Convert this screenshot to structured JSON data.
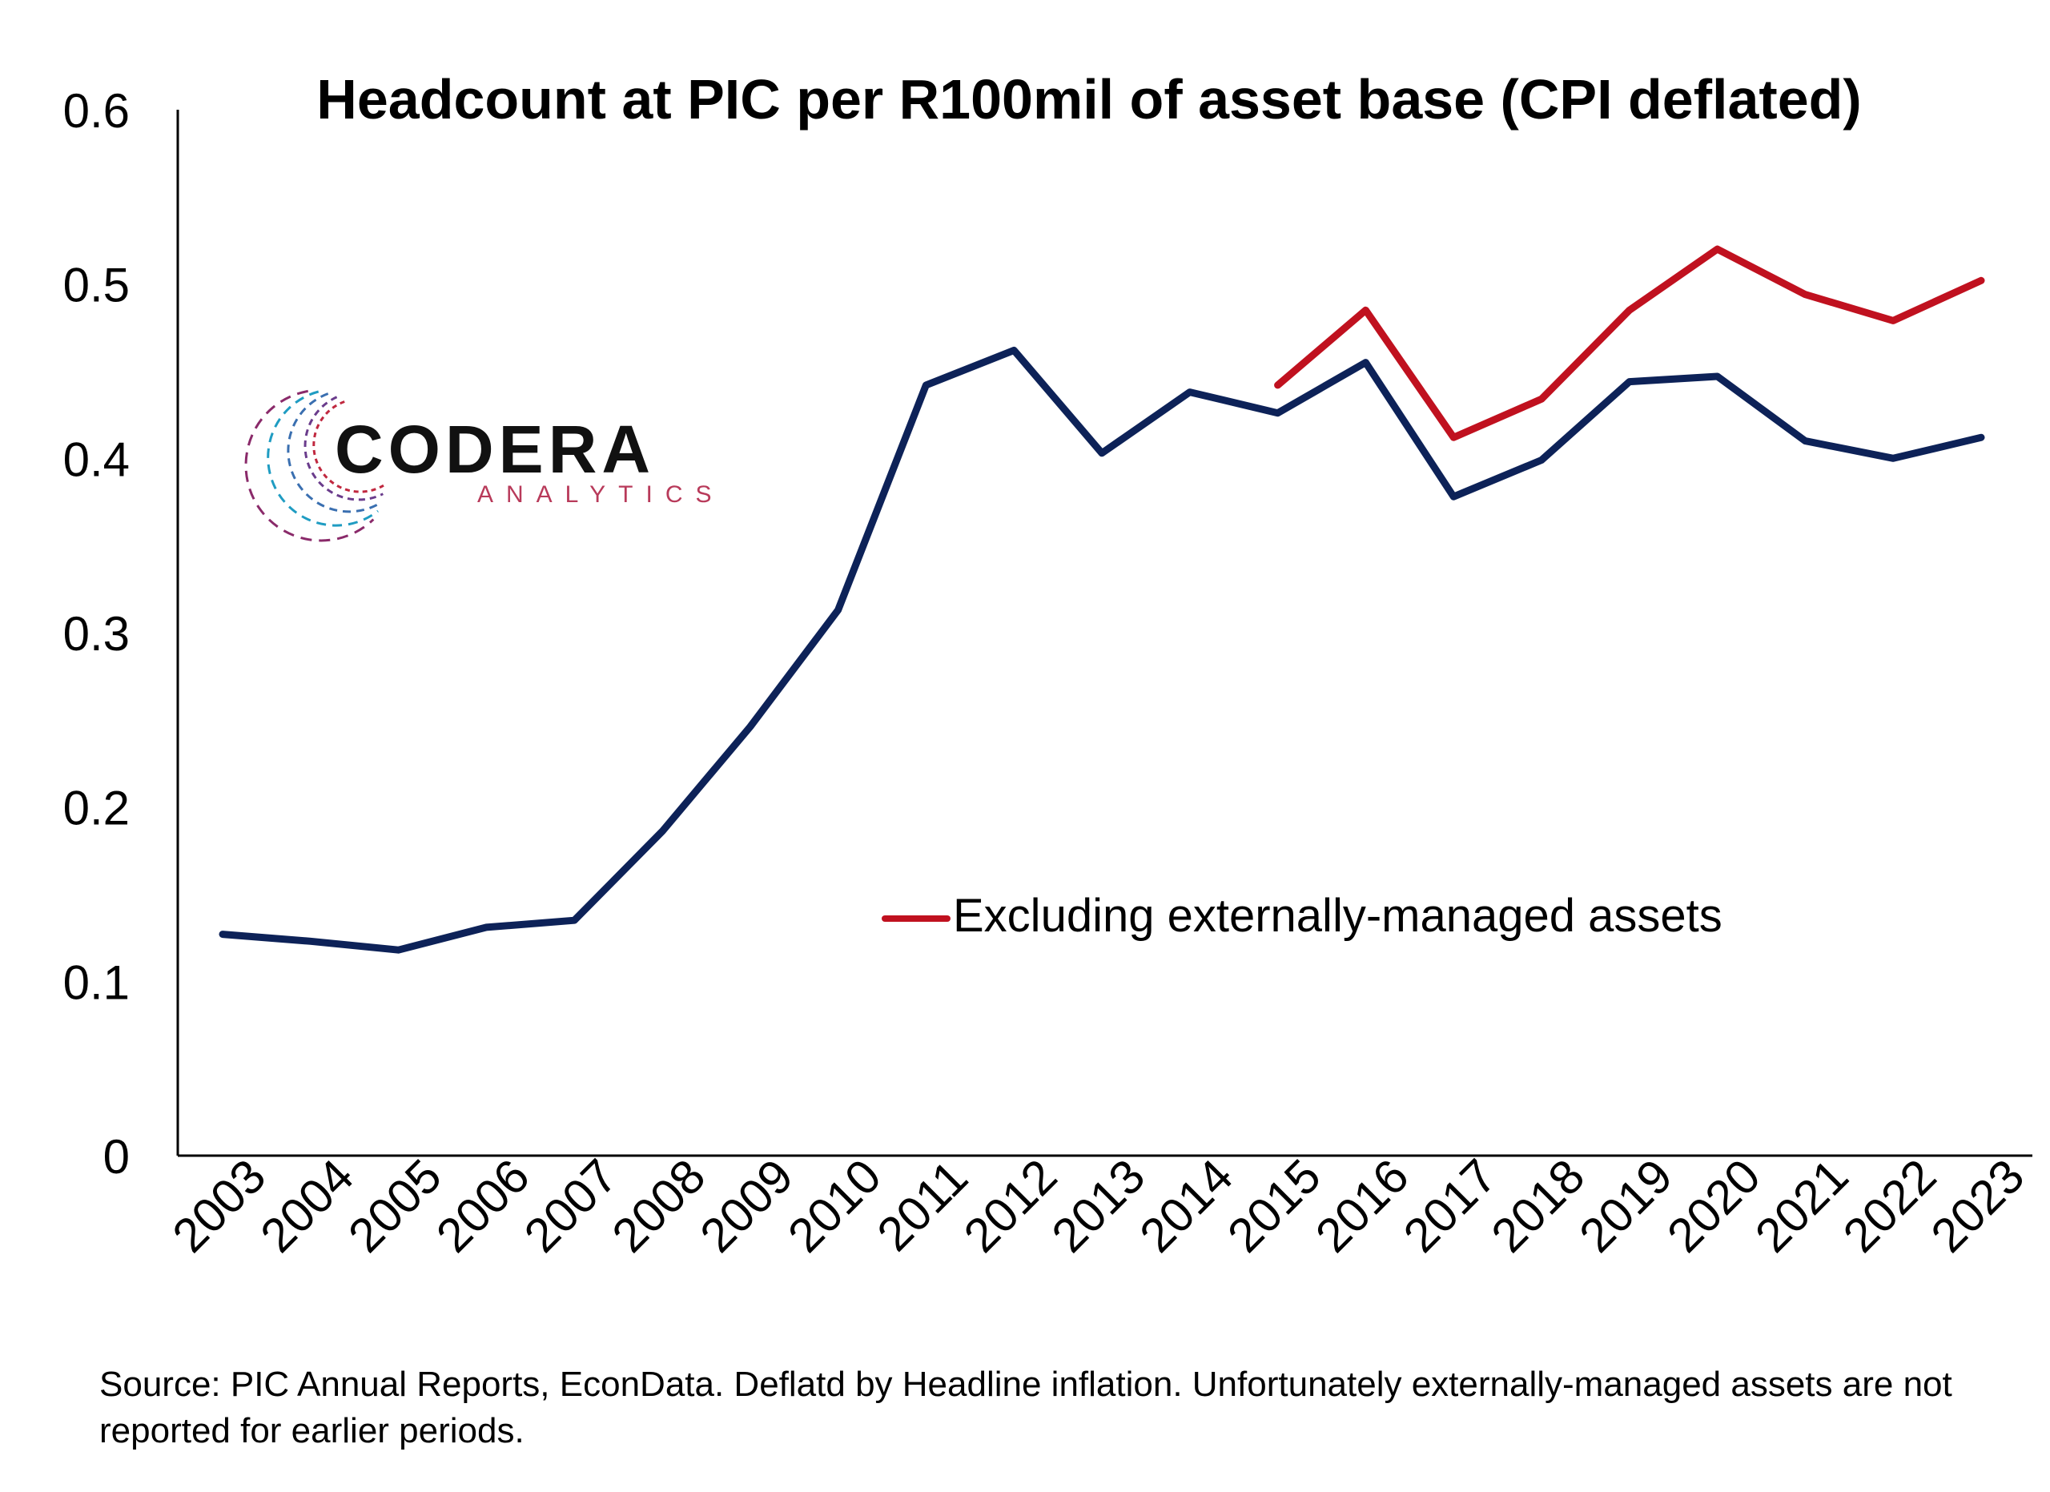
{
  "chart_data": {
    "type": "line",
    "title": "Headcount at PIC per R100mil of asset base (CPI deflated)",
    "xlabel": "",
    "ylabel": "",
    "categories": [
      "2003",
      "2004",
      "2005",
      "2006",
      "2007",
      "2008",
      "2009",
      "2010",
      "2011",
      "2012",
      "2013",
      "2014",
      "2015",
      "2016",
      "2017",
      "2018",
      "2019",
      "2020",
      "2021",
      "2022",
      "2023"
    ],
    "ylim": [
      0,
      0.6
    ],
    "yticks": [
      "0",
      "0.1",
      "0.2",
      "0.3",
      "0.4",
      "0.5",
      "0.6"
    ],
    "grid": false,
    "legend_position": "center-right",
    "series": [
      {
        "name": "",
        "color": "#0d2258",
        "values": [
          0.127,
          0.123,
          0.118,
          0.131,
          0.135,
          0.186,
          0.246,
          0.313,
          0.442,
          0.462,
          0.403,
          0.438,
          0.426,
          0.455,
          0.378,
          0.399,
          0.444,
          0.447,
          0.41,
          0.4,
          0.412
        ]
      },
      {
        "name": "Excluding externally-managed assets",
        "color": "#c0111f",
        "values": [
          null,
          null,
          null,
          null,
          null,
          null,
          null,
          null,
          null,
          null,
          null,
          null,
          0.442,
          0.485,
          0.412,
          0.434,
          0.485,
          0.52,
          0.494,
          0.479,
          0.502
        ]
      }
    ]
  },
  "logo": {
    "name": "CODERA",
    "tagline": "ANALYTICS"
  },
  "source": "Source: PIC Annual Reports, EconData. Deflatd by Headline inflation. Unfortunately externally-managed assets are not reported for earlier periods."
}
